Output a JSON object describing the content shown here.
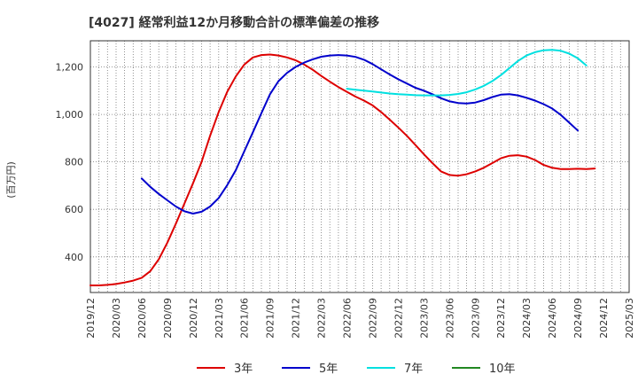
{
  "chart_data": {
    "type": "line",
    "title": "[4027]  経常利益12か月移動合計の標準偏差の推移",
    "ylabel": "(百万円)",
    "xlabel": "",
    "ylim": [
      250,
      1310
    ],
    "yticks": [
      400,
      600,
      800,
      1000,
      1200
    ],
    "ytick_labels": [
      "400",
      "600",
      "800",
      "1,000",
      "1,200"
    ],
    "xticks": [
      "2019/12",
      "2020/03",
      "2020/06",
      "2020/09",
      "2020/12",
      "2021/03",
      "2021/06",
      "2021/09",
      "2021/12",
      "2022/03",
      "2022/06",
      "2022/09",
      "2022/12",
      "2023/03",
      "2023/06",
      "2023/09",
      "2023/12",
      "2024/03",
      "2024/06",
      "2024/09",
      "2024/12",
      "2025/03"
    ],
    "grid": true,
    "legend_position": "bottom",
    "series": [
      {
        "name": "3年",
        "color": "#dd0000",
        "start_index": 0,
        "values": [
          280,
          280,
          282,
          286,
          292,
          300,
          312,
          340,
          390,
          460,
          540,
          625,
          710,
          800,
          910,
          1010,
          1095,
          1160,
          1210,
          1240,
          1250,
          1252,
          1248,
          1240,
          1228,
          1210,
          1188,
          1162,
          1138,
          1115,
          1095,
          1075,
          1058,
          1038,
          1010,
          978,
          945,
          910,
          872,
          832,
          795,
          760,
          745,
          742,
          748,
          760,
          775,
          795,
          815,
          826,
          828,
          822,
          808,
          787,
          775,
          770,
          770,
          771,
          770,
          772
        ]
      },
      {
        "name": "5年",
        "color": "#0000cc",
        "start_index": 6,
        "values": [
          730,
          695,
          665,
          638,
          612,
          592,
          582,
          590,
          612,
          648,
          702,
          765,
          845,
          925,
          1005,
          1085,
          1140,
          1175,
          1200,
          1218,
          1232,
          1243,
          1248,
          1250,
          1248,
          1242,
          1230,
          1212,
          1190,
          1168,
          1148,
          1130,
          1112,
          1100,
          1085,
          1068,
          1055,
          1048,
          1046,
          1050,
          1060,
          1073,
          1083,
          1085,
          1080,
          1070,
          1058,
          1043,
          1025,
          998,
          965,
          932
        ]
      },
      {
        "name": "7年",
        "color": "#00e0e0",
        "start_index": 30,
        "values": [
          1108,
          1104,
          1100,
          1096,
          1092,
          1088,
          1085,
          1083,
          1081,
          1080,
          1080,
          1080,
          1082,
          1086,
          1093,
          1105,
          1120,
          1140,
          1165,
          1195,
          1225,
          1248,
          1262,
          1270,
          1272,
          1268,
          1256,
          1236,
          1206
        ]
      },
      {
        "name": "10年",
        "color": "#228822",
        "start_index": 0,
        "values": []
      }
    ]
  }
}
